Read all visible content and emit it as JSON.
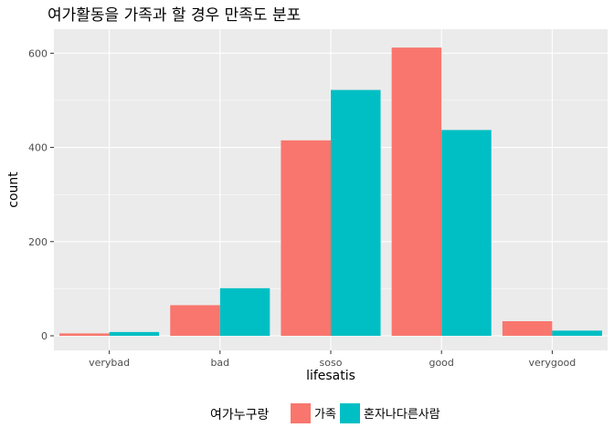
{
  "chart_data": {
    "type": "bar",
    "title": "여가활동을 가족과 할 경우 만족도 분포",
    "xlabel": "lifesatis",
    "ylabel": "count",
    "categories": [
      "verybad",
      "bad",
      "soso",
      "good",
      "verygood"
    ],
    "series": [
      {
        "name": "가족",
        "color": "#F8766D",
        "values": [
          5,
          65,
          415,
          612,
          31
        ]
      },
      {
        "name": "혼자나다른사람",
        "color": "#00BFC4",
        "values": [
          8,
          101,
          522,
          437,
          11
        ]
      }
    ],
    "yticks": [
      0,
      200,
      400,
      600
    ],
    "ylim": [
      -31,
      651
    ],
    "legend": {
      "title": "여가누구랑",
      "position": "bottom"
    },
    "grid": true,
    "panel_background": "#EBEBEB"
  }
}
